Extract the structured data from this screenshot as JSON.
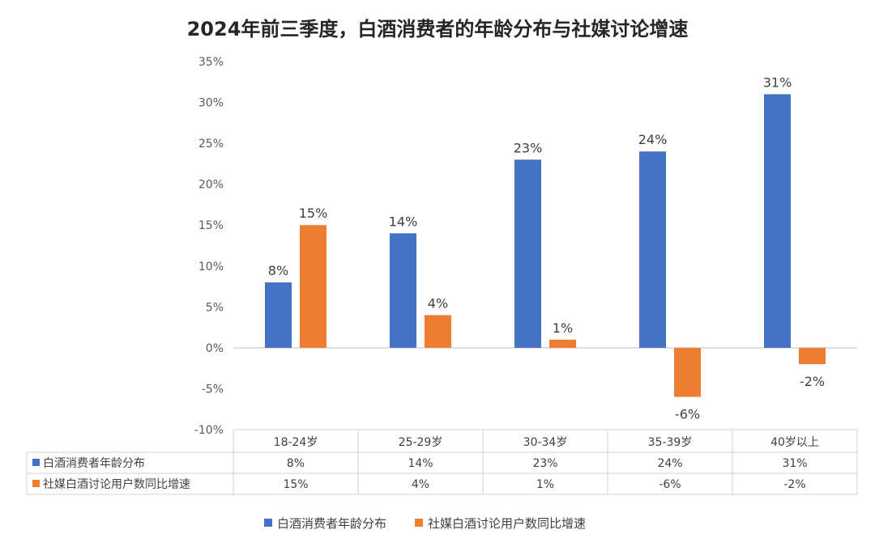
{
  "chart_data": {
    "type": "bar",
    "title": "2024年前三季度，白酒消费者的年龄分布与社媒讨论增速",
    "categories": [
      "18-24岁",
      "25-29岁",
      "30-34岁",
      "35-39岁",
      "40岁以上"
    ],
    "series": [
      {
        "name": "白酒消费者年龄分布",
        "color": "#4472c4",
        "values": [
          8,
          14,
          23,
          24,
          31
        ],
        "labels": [
          "8%",
          "14%",
          "23%",
          "24%",
          "31%"
        ]
      },
      {
        "name": "社媒白酒讨论用户数同比增速",
        "color": "#ed7d31",
        "values": [
          15,
          4,
          1,
          -6,
          -2
        ],
        "labels": [
          "15%",
          "4%",
          "1%",
          "-6%",
          "-2%"
        ]
      }
    ],
    "ylim": [
      -10,
      35
    ],
    "yticks": [
      "35%",
      "30%",
      "25%",
      "20%",
      "15%",
      "10%",
      "5%",
      "0%",
      "-5%",
      "-10%"
    ],
    "ytick_values": [
      35,
      30,
      25,
      20,
      15,
      10,
      5,
      0,
      -5,
      -10
    ],
    "data_table": true,
    "legend_position": "bottom",
    "grid": false
  }
}
